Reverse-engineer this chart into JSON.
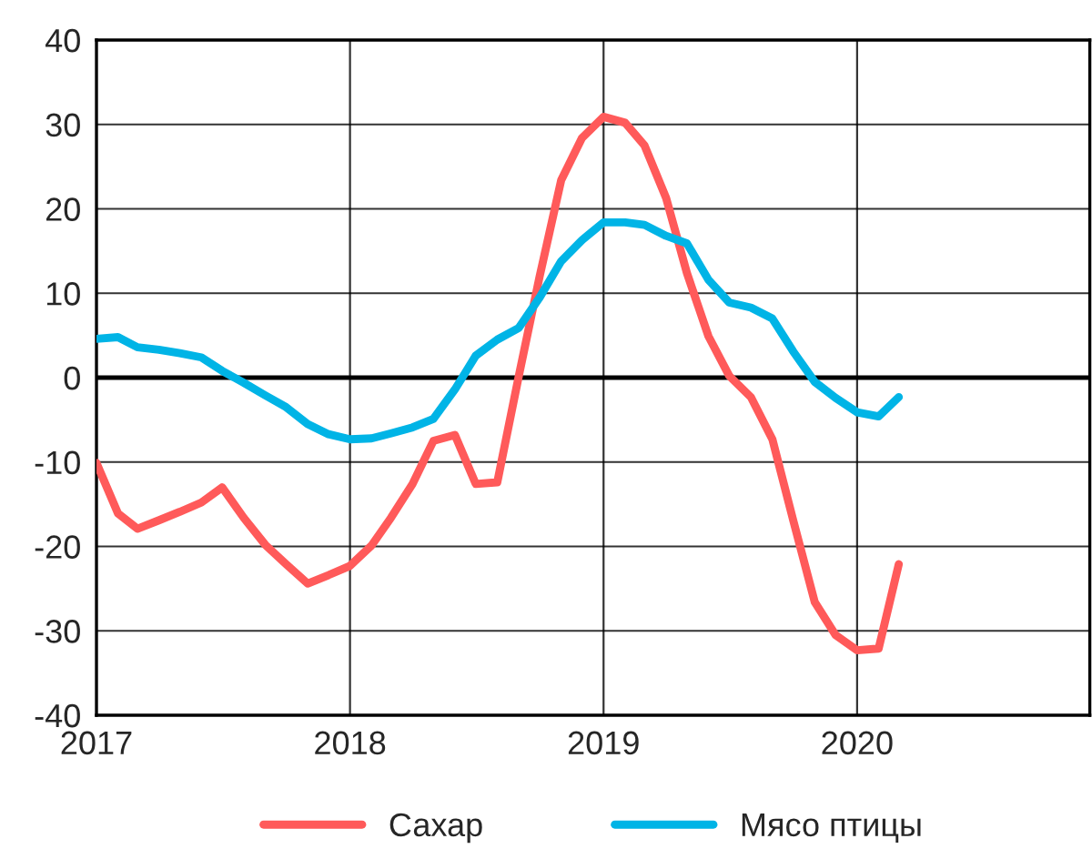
{
  "chart_data": {
    "type": "line",
    "x": [
      "2017-01",
      "2017-02",
      "2017-03",
      "2017-04",
      "2017-05",
      "2017-06",
      "2017-07",
      "2017-08",
      "2017-09",
      "2017-10",
      "2017-11",
      "2017-12",
      "2018-01",
      "2018-02",
      "2018-03",
      "2018-04",
      "2018-05",
      "2018-06",
      "2018-07",
      "2018-08",
      "2018-09",
      "2018-10",
      "2018-11",
      "2018-12",
      "2019-01",
      "2019-02",
      "2019-03",
      "2019-04",
      "2019-05",
      "2019-06",
      "2019-07",
      "2019-08",
      "2019-09",
      "2019-10",
      "2019-11",
      "2019-12",
      "2020-01",
      "2020-02",
      "2020-03"
    ],
    "series": [
      {
        "name": "Сахар",
        "color": "#ff5a5a",
        "values": [
          -10.1,
          -16.1,
          -17.9,
          -16.9,
          -15.9,
          -14.8,
          -13.0,
          -16.6,
          -19.8,
          -22.1,
          -24.4,
          -23.4,
          -22.3,
          -19.9,
          -16.6,
          -12.6,
          -7.5,
          -6.8,
          -12.6,
          -12.4,
          0.2,
          12.0,
          23.4,
          28.4,
          30.9,
          30.2,
          27.5,
          21.3,
          12.4,
          4.9,
          0.2,
          -2.3,
          -7.3,
          -16.9,
          -26.6,
          -30.5,
          -32.3,
          -32.1,
          -22.1
        ]
      },
      {
        "name": "Мясо птицы",
        "color": "#00b4e6",
        "values": [
          4.6,
          4.8,
          3.6,
          3.3,
          2.9,
          2.4,
          0.8,
          -0.6,
          -2.1,
          -3.5,
          -5.5,
          -6.7,
          -7.3,
          -7.2,
          -6.6,
          -5.9,
          -4.9,
          -1.4,
          2.6,
          4.5,
          5.9,
          9.5,
          13.8,
          16.3,
          18.4,
          18.4,
          18.1,
          16.8,
          15.9,
          11.6,
          8.9,
          8.3,
          7.0,
          3.1,
          -0.5,
          -2.4,
          -4.1,
          -4.6,
          -2.3
        ]
      }
    ],
    "xlim": [
      "2017-01",
      "2020-12"
    ],
    "xticks": [
      "2017",
      "2018",
      "2019",
      "2020"
    ],
    "ylim": [
      -40,
      40
    ],
    "yticks": [
      -40,
      -30,
      -20,
      -10,
      0,
      10,
      20,
      30,
      40
    ],
    "ref_lines": [
      {
        "axis": "y",
        "value": 0,
        "color": "#000000"
      }
    ],
    "grid": true,
    "legend": "bottom",
    "marker": "none",
    "line_style": "solid"
  }
}
